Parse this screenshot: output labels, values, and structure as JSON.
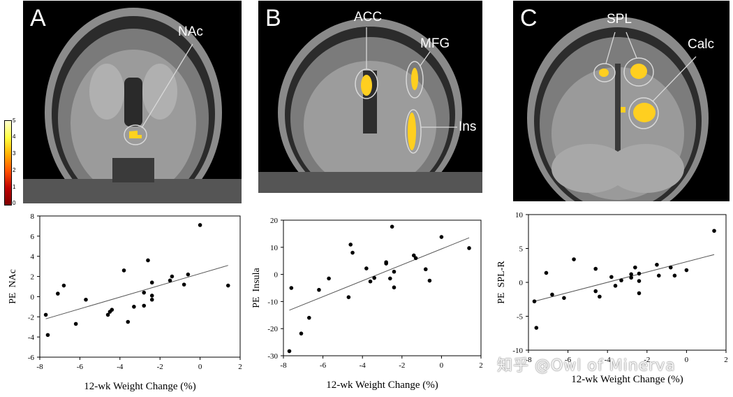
{
  "colorbar": {
    "ticks": [
      "5",
      "4",
      "3",
      "2",
      "1",
      "0"
    ]
  },
  "panels": {
    "a": {
      "letter": "A",
      "regions": [
        "NAc"
      ]
    },
    "b": {
      "letter": "B",
      "regions": [
        "ACC",
        "MFG",
        "Ins"
      ]
    },
    "c": {
      "letter": "C",
      "regions": [
        "SPL",
        "Calc"
      ]
    }
  },
  "watermark": "知乎 @Owl of Minerva",
  "chart_data": [
    {
      "type": "scatter",
      "title": "",
      "xlabel": "12-wk Weight Change (%)",
      "ylabel": "PE  NAc",
      "xlim": [
        -8,
        2
      ],
      "ylim": [
        -6,
        8
      ],
      "xticks": [
        -8,
        -6,
        -4,
        -2,
        0,
        2
      ],
      "yticks": [
        -6,
        -4,
        -2,
        0,
        2,
        4,
        6,
        8
      ],
      "grid": false,
      "points": [
        [
          -7.7,
          -1.8
        ],
        [
          -7.6,
          -3.8
        ],
        [
          -7.1,
          0.3
        ],
        [
          -6.8,
          1.1
        ],
        [
          -6.2,
          -2.7
        ],
        [
          -5.7,
          -0.3
        ],
        [
          -4.6,
          -1.8
        ],
        [
          -4.5,
          -1.5
        ],
        [
          -4.4,
          -1.3
        ],
        [
          -3.8,
          2.6
        ],
        [
          -3.6,
          -2.5
        ],
        [
          -3.3,
          -1.0
        ],
        [
          -2.8,
          0.4
        ],
        [
          -2.8,
          -0.9
        ],
        [
          -2.6,
          3.6
        ],
        [
          -2.4,
          1.4
        ],
        [
          -2.4,
          0.1
        ],
        [
          -2.4,
          -0.3
        ],
        [
          -1.5,
          1.6
        ],
        [
          -1.4,
          2.0
        ],
        [
          -0.8,
          1.2
        ],
        [
          -0.6,
          2.2
        ],
        [
          0.0,
          7.1
        ],
        [
          1.4,
          1.1
        ]
      ],
      "trendline": [
        [
          -7.7,
          -2.2
        ],
        [
          1.4,
          3.1
        ]
      ]
    },
    {
      "type": "scatter",
      "title": "",
      "xlabel": "12-wk Weight Change (%)",
      "ylabel": "PE  Insula",
      "xlim": [
        -8,
        2
      ],
      "ylim": [
        -30,
        20
      ],
      "xticks": [
        -8,
        -6,
        -4,
        -2,
        0,
        2
      ],
      "yticks": [
        -30,
        -20,
        -10,
        0,
        10,
        20
      ],
      "grid": false,
      "points": [
        [
          -7.7,
          -28.3
        ],
        [
          -7.6,
          -5.0
        ],
        [
          -7.1,
          -21.8
        ],
        [
          -6.7,
          -16.0
        ],
        [
          -6.2,
          -5.7
        ],
        [
          -5.7,
          -1.5
        ],
        [
          -4.7,
          -8.4
        ],
        [
          -4.6,
          11.0
        ],
        [
          -4.5,
          8.0
        ],
        [
          -3.8,
          2.2
        ],
        [
          -3.6,
          -2.6
        ],
        [
          -3.4,
          -1.3
        ],
        [
          -2.8,
          4.5
        ],
        [
          -2.8,
          4.0
        ],
        [
          -2.6,
          -1.5
        ],
        [
          -2.5,
          17.6
        ],
        [
          -2.4,
          -4.8
        ],
        [
          -2.4,
          1.0
        ],
        [
          -1.4,
          7.0
        ],
        [
          -1.3,
          6.0
        ],
        [
          -0.8,
          1.9
        ],
        [
          -0.6,
          -2.3
        ],
        [
          0.0,
          13.8
        ],
        [
          1.4,
          9.7
        ]
      ],
      "trendline": [
        [
          -7.7,
          -13.2
        ],
        [
          1.4,
          13.5
        ]
      ]
    },
    {
      "type": "scatter",
      "title": "",
      "xlabel": "12-wk Weight Change (%)",
      "ylabel": "PE  SPL-R",
      "xlim": [
        -8,
        2
      ],
      "ylim": [
        -10,
        10
      ],
      "xticks": [
        -8,
        -6,
        -4,
        -2,
        0,
        2
      ],
      "yticks": [
        -10,
        -5,
        0,
        5,
        10
      ],
      "grid": false,
      "points": [
        [
          -7.7,
          -2.8
        ],
        [
          -7.6,
          -6.7
        ],
        [
          -7.1,
          1.4
        ],
        [
          -6.8,
          -1.8
        ],
        [
          -6.2,
          -2.3
        ],
        [
          -5.7,
          3.4
        ],
        [
          -4.6,
          2.0
        ],
        [
          -4.6,
          -1.3
        ],
        [
          -4.4,
          -2.1
        ],
        [
          -3.8,
          0.8
        ],
        [
          -3.6,
          -0.5
        ],
        [
          -3.3,
          0.3
        ],
        [
          -2.8,
          1.2
        ],
        [
          -2.8,
          0.7
        ],
        [
          -2.6,
          2.2
        ],
        [
          -2.4,
          0.2
        ],
        [
          -2.4,
          -1.6
        ],
        [
          -2.4,
          1.3
        ],
        [
          -1.5,
          2.6
        ],
        [
          -1.4,
          1.0
        ],
        [
          -0.8,
          2.2
        ],
        [
          -0.6,
          1.0
        ],
        [
          0.0,
          1.8
        ],
        [
          1.4,
          7.6
        ]
      ],
      "trendline": [
        [
          -7.7,
          -2.8
        ],
        [
          1.4,
          4.1
        ]
      ]
    }
  ]
}
